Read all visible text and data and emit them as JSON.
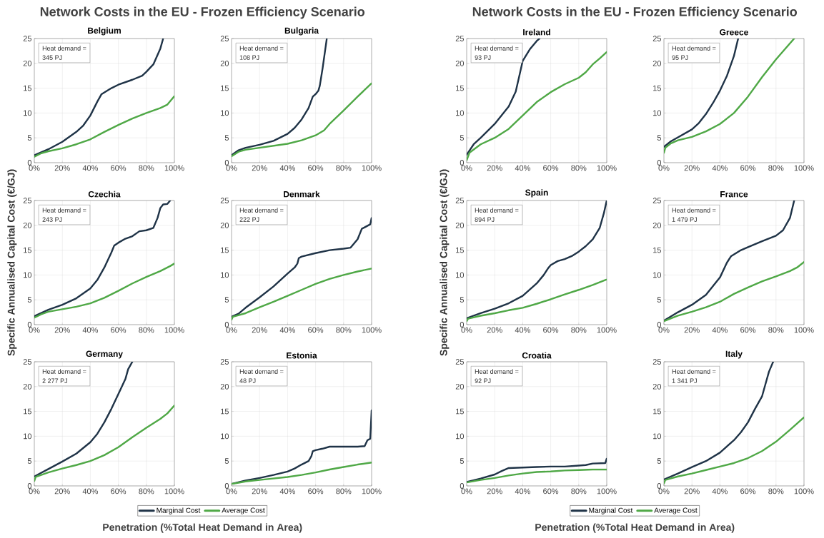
{
  "chart_data": [
    {
      "type": "line",
      "title": "Belgium",
      "xlim": [
        0,
        100
      ],
      "xticks": [
        {
          "value": 0,
          "label": "0%"
        },
        {
          "value": 20,
          "label": "20%"
        },
        {
          "value": 40,
          "label": "40%"
        },
        {
          "value": 60,
          "label": "60%"
        },
        {
          "value": 80,
          "label": "80%"
        },
        {
          "value": 100,
          "label": "100%"
        }
      ],
      "ylim": [
        0,
        25
      ],
      "yticks": [
        0,
        5,
        10,
        15,
        20,
        25
      ],
      "grid": true,
      "annotations": [
        "Network Costs in the EU - Frozen Efficiency Scenario",
        "Heat demand =",
        "345 PJ"
      ],
      "series": [
        {
          "color": "#1f3347",
          "x": [
            0,
            10,
            20,
            30,
            35,
            40,
            45,
            48,
            55,
            60,
            70,
            77,
            80,
            85,
            90,
            92
          ],
          "values": [
            1.5,
            2.7,
            4.2,
            6.2,
            7.5,
            9.5,
            12.3,
            13.8,
            15,
            15.7,
            16.7,
            17.5,
            18.3,
            19.8,
            23,
            25
          ]
        },
        {
          "color": "#4fa846",
          "x": [
            0,
            5,
            10,
            20,
            30,
            40,
            50,
            60,
            70,
            80,
            90,
            95,
            100
          ],
          "values": [
            1.2,
            1.9,
            2.3,
            2.9,
            3.7,
            4.7,
            6.2,
            7.6,
            8.9,
            10,
            11,
            11.7,
            13.4
          ]
        }
      ]
    },
    {
      "type": "line",
      "title": "Bulgaria",
      "xlim": [
        0,
        100
      ],
      "xticks": [
        {
          "value": 0,
          "label": "0%"
        },
        {
          "value": 20,
          "label": "20%"
        },
        {
          "value": 40,
          "label": "40%"
        },
        {
          "value": 60,
          "label": "60%"
        },
        {
          "value": 80,
          "label": "80%"
        },
        {
          "value": 100,
          "label": "100%"
        }
      ],
      "ylim": [
        0,
        25
      ],
      "yticks": [
        0,
        5,
        10,
        15,
        20,
        25
      ],
      "grid": true,
      "annotations": [
        "Heat demand =",
        "108 PJ"
      ],
      "series": [
        {
          "color": "#1f3347",
          "x": [
            0,
            5,
            10,
            20,
            30,
            40,
            45,
            50,
            55,
            58,
            60,
            62,
            63,
            65,
            67,
            68
          ],
          "values": [
            1.5,
            2.5,
            3,
            3.6,
            4.4,
            5.8,
            7,
            8.7,
            11,
            13.3,
            13.8,
            14.5,
            15.5,
            19,
            23,
            25
          ]
        },
        {
          "color": "#4fa846",
          "x": [
            0,
            5,
            10,
            20,
            30,
            40,
            50,
            60,
            66,
            70,
            80,
            90,
            100
          ],
          "values": [
            1.3,
            2.2,
            2.6,
            3,
            3.4,
            3.8,
            4.5,
            5.5,
            6.5,
            7.8,
            10.5,
            13.3,
            16
          ]
        }
      ]
    },
    {
      "type": "line",
      "title": "Czechia",
      "ylabel": "Specific Annualised Capital Cost (€/GJ)",
      "xlim": [
        0,
        100
      ],
      "xticks": [
        {
          "value": 0,
          "label": "0%"
        },
        {
          "value": 20,
          "label": "20%"
        },
        {
          "value": 40,
          "label": "40%"
        },
        {
          "value": 60,
          "label": "60%"
        },
        {
          "value": 80,
          "label": "80%"
        },
        {
          "value": 100,
          "label": "100%"
        }
      ],
      "ylim": [
        0,
        25
      ],
      "yticks": [
        0,
        5,
        10,
        15,
        20,
        25
      ],
      "grid": true,
      "annotations": [
        "Heat demand =",
        "243 PJ"
      ],
      "series": [
        {
          "color": "#1f3347",
          "x": [
            0,
            10,
            20,
            30,
            40,
            45,
            50,
            55,
            57,
            60,
            65,
            70,
            75,
            80,
            85,
            88,
            90,
            92,
            95,
            97
          ],
          "values": [
            1.7,
            3,
            4,
            5.3,
            7.3,
            9,
            11.5,
            14.5,
            15.9,
            16.5,
            17.3,
            17.8,
            18.8,
            19,
            19.5,
            21.5,
            23.5,
            24.2,
            24.3,
            25
          ]
        },
        {
          "color": "#4fa846",
          "x": [
            0,
            5,
            10,
            20,
            30,
            40,
            50,
            60,
            70,
            80,
            90,
            97,
            100
          ],
          "values": [
            1.4,
            2.1,
            2.6,
            3.1,
            3.6,
            4.3,
            5.4,
            6.8,
            8.3,
            9.6,
            10.8,
            11.8,
            12.3
          ]
        }
      ]
    },
    {
      "type": "line",
      "title": "Denmark",
      "xlim": [
        0,
        100
      ],
      "xticks": [
        {
          "value": 0,
          "label": "0%"
        },
        {
          "value": 20,
          "label": "20%"
        },
        {
          "value": 40,
          "label": "40%"
        },
        {
          "value": 60,
          "label": "60%"
        },
        {
          "value": 80,
          "label": "80%"
        },
        {
          "value": 100,
          "label": "100%"
        }
      ],
      "ylim": [
        0,
        25
      ],
      "yticks": [
        0,
        5,
        10,
        15,
        20,
        25
      ],
      "grid": true,
      "annotations": [
        "Heat demand =",
        "222 PJ"
      ],
      "series": [
        {
          "color": "#1f3347",
          "x": [
            0,
            5,
            10,
            20,
            30,
            40,
            45,
            47,
            48,
            50,
            60,
            70,
            80,
            85,
            90,
            93,
            95,
            99,
            100
          ],
          "values": [
            1.6,
            2.2,
            3.4,
            5.5,
            7.7,
            10.3,
            11.5,
            12.3,
            13.4,
            13.7,
            14.4,
            15,
            15.3,
            15.5,
            17.2,
            19.3,
            19.6,
            20.2,
            21.5
          ]
        },
        {
          "color": "#4fa846",
          "x": [
            0,
            1,
            10,
            20,
            30,
            40,
            50,
            60,
            70,
            80,
            90,
            100
          ],
          "values": [
            1,
            1.6,
            2.3,
            3.5,
            4.6,
            5.8,
            7,
            8.2,
            9.2,
            10,
            10.7,
            11.3
          ]
        }
      ]
    },
    {
      "type": "line",
      "title": "Germany",
      "xlabel": "Penetration (%Total Heat Demand in Area)",
      "legend": "bottom",
      "xlim": [
        0,
        100
      ],
      "xticks": [
        {
          "value": 0,
          "label": "0%"
        },
        {
          "value": 20,
          "label": "20%"
        },
        {
          "value": 40,
          "label": "40%"
        },
        {
          "value": 60,
          "label": "60%"
        },
        {
          "value": 80,
          "label": "80%"
        },
        {
          "value": 100,
          "label": "100%"
        }
      ],
      "ylim": [
        0,
        25
      ],
      "yticks": [
        0,
        5,
        10,
        15,
        20,
        25
      ],
      "grid": true,
      "annotations": [
        "Heat demand =",
        "2 277 PJ"
      ],
      "series": [
        {
          "name": "Marginal Cost",
          "color": "#1f3347",
          "x": [
            0,
            10,
            20,
            30,
            40,
            45,
            50,
            55,
            60,
            65,
            67,
            70
          ],
          "values": [
            1.9,
            3.4,
            4.9,
            6.5,
            8.8,
            10.5,
            12.8,
            15.5,
            18.5,
            21.5,
            23.5,
            25
          ]
        },
        {
          "name": "Average Cost",
          "color": "#4fa846",
          "x": [
            0,
            1,
            10,
            20,
            30,
            40,
            50,
            60,
            70,
            80,
            90,
            95,
            100
          ],
          "values": [
            1,
            1.8,
            2.7,
            3.5,
            4.2,
            5,
            6.2,
            7.8,
            9.8,
            11.7,
            13.5,
            14.6,
            16.2
          ]
        }
      ]
    },
    {
      "type": "line",
      "title": "Estonia",
      "xlim": [
        0,
        100
      ],
      "xticks": [
        {
          "value": 0,
          "label": "0%"
        },
        {
          "value": 20,
          "label": "20%"
        },
        {
          "value": 40,
          "label": "40%"
        },
        {
          "value": 60,
          "label": "60%"
        },
        {
          "value": 80,
          "label": "80%"
        },
        {
          "value": 100,
          "label": "100%"
        }
      ],
      "ylim": [
        0,
        25
      ],
      "yticks": [
        0,
        5,
        10,
        15,
        20,
        25
      ],
      "grid": true,
      "annotations": [
        "Heat demand =",
        "48 PJ"
      ],
      "series": [
        {
          "color": "#1f3347",
          "x": [
            0,
            10,
            20,
            30,
            40,
            45,
            50,
            55,
            57,
            58,
            60,
            65,
            70,
            80,
            90,
            95,
            97,
            99,
            100
          ],
          "values": [
            0.4,
            1.1,
            1.6,
            2.2,
            2.9,
            3.5,
            4.3,
            5,
            6,
            7,
            7.2,
            7.5,
            7.9,
            7.9,
            7.9,
            8,
            9.2,
            9.5,
            15.2
          ]
        },
        {
          "color": "#4fa846",
          "x": [
            0,
            10,
            20,
            30,
            40,
            50,
            60,
            70,
            80,
            90,
            100
          ],
          "values": [
            0.4,
            0.9,
            1.2,
            1.5,
            1.8,
            2.2,
            2.7,
            3.3,
            3.8,
            4.3,
            4.7
          ]
        }
      ]
    },
    {
      "type": "line",
      "title": "Ireland",
      "xlim": [
        0,
        100
      ],
      "xticks": [
        {
          "value": 0,
          "label": "0%"
        },
        {
          "value": 20,
          "label": "20%"
        },
        {
          "value": 40,
          "label": "40%"
        },
        {
          "value": 60,
          "label": "60%"
        },
        {
          "value": 80,
          "label": "80%"
        },
        {
          "value": 100,
          "label": "100%"
        }
      ],
      "ylim": [
        0,
        25
      ],
      "yticks": [
        0,
        5,
        10,
        15,
        20,
        25
      ],
      "grid": true,
      "annotations": [
        "Network Costs in the EU - Frozen Efficiency Scenario",
        "Heat demand =",
        "93 PJ"
      ],
      "series": [
        {
          "color": "#1f3347",
          "x": [
            0,
            5,
            10,
            20,
            30,
            35,
            38,
            40,
            45,
            50,
            52
          ],
          "values": [
            1.6,
            3.7,
            5,
            7.8,
            11.3,
            14.3,
            18,
            20.5,
            22.8,
            24.5,
            25
          ]
        },
        {
          "color": "#4fa846",
          "x": [
            0,
            2,
            10,
            20,
            30,
            40,
            50,
            60,
            70,
            80,
            85,
            90,
            95,
            100
          ],
          "values": [
            0.5,
            2,
            3.7,
            5,
            6.8,
            9.5,
            12.2,
            14.2,
            15.8,
            17.1,
            18.2,
            19.8,
            21,
            22.3
          ]
        }
      ]
    },
    {
      "type": "line",
      "title": "Greece",
      "xlim": [
        0,
        100
      ],
      "xticks": [
        {
          "value": 0,
          "label": "0%"
        },
        {
          "value": 20,
          "label": "20%"
        },
        {
          "value": 40,
          "label": "40%"
        },
        {
          "value": 60,
          "label": "60%"
        },
        {
          "value": 80,
          "label": "80%"
        },
        {
          "value": 100,
          "label": "100%"
        }
      ],
      "ylim": [
        0,
        25
      ],
      "yticks": [
        0,
        5,
        10,
        15,
        20,
        25
      ],
      "grid": true,
      "annotations": [
        "Heat demand =",
        "95 PJ"
      ],
      "series": [
        {
          "color": "#1f3347",
          "x": [
            0,
            5,
            10,
            20,
            25,
            30,
            35,
            40,
            45,
            50,
            53
          ],
          "values": [
            3.2,
            4.3,
            5.1,
            6.7,
            8,
            9.8,
            12,
            14.5,
            17.5,
            21.5,
            25
          ]
        },
        {
          "color": "#4fa846",
          "x": [
            0,
            1,
            5,
            10,
            20,
            30,
            40,
            50,
            60,
            70,
            80,
            93
          ],
          "values": [
            2,
            3,
            3.9,
            4.5,
            5.2,
            6.3,
            7.8,
            10,
            13.3,
            17.2,
            20.8,
            25
          ]
        }
      ]
    },
    {
      "type": "line",
      "title": "Spain",
      "ylabel": "Specific Annualised Capital Cost (€/GJ)",
      "xlim": [
        0,
        100
      ],
      "xticks": [
        {
          "value": 0,
          "label": "0%"
        },
        {
          "value": 20,
          "label": "20%"
        },
        {
          "value": 40,
          "label": "40%"
        },
        {
          "value": 60,
          "label": "60%"
        },
        {
          "value": 80,
          "label": "80%"
        },
        {
          "value": 100,
          "label": "100%"
        }
      ],
      "ylim": [
        0,
        25
      ],
      "yticks": [
        0,
        5,
        10,
        15,
        20,
        25
      ],
      "grid": true,
      "annotations": [
        "Heat demand =",
        "894 PJ"
      ],
      "series": [
        {
          "color": "#1f3347",
          "x": [
            0,
            10,
            20,
            30,
            40,
            50,
            55,
            58,
            60,
            65,
            70,
            75,
            80,
            85,
            90,
            95,
            98,
            100
          ],
          "values": [
            1.3,
            2.3,
            3.2,
            4.3,
            5.8,
            8.3,
            10,
            11.3,
            12,
            12.8,
            13.2,
            13.8,
            14.7,
            15.8,
            17.2,
            19.5,
            22.5,
            25
          ]
        },
        {
          "color": "#4fa846",
          "x": [
            0,
            1,
            10,
            20,
            30,
            40,
            50,
            60,
            70,
            80,
            90,
            100
          ],
          "values": [
            0.7,
            1.2,
            1.8,
            2.3,
            2.9,
            3.4,
            4.2,
            5.1,
            6.1,
            7,
            8,
            9.1
          ]
        }
      ]
    },
    {
      "type": "line",
      "title": "France",
      "xlim": [
        0,
        100
      ],
      "xticks": [
        {
          "value": 0,
          "label": "0%"
        },
        {
          "value": 20,
          "label": "20%"
        },
        {
          "value": 40,
          "label": "40%"
        },
        {
          "value": 60,
          "label": "60%"
        },
        {
          "value": 80,
          "label": "80%"
        },
        {
          "value": 100,
          "label": "100%"
        }
      ],
      "ylim": [
        0,
        25
      ],
      "yticks": [
        0,
        5,
        10,
        15,
        20,
        25
      ],
      "grid": true,
      "annotations": [
        "Heat demand =",
        "1 479 PJ"
      ],
      "series": [
        {
          "color": "#1f3347",
          "x": [
            0,
            10,
            20,
            30,
            40,
            45,
            48,
            55,
            60,
            70,
            80,
            85,
            90,
            93
          ],
          "values": [
            0.8,
            2.5,
            4,
            6,
            9.5,
            12.5,
            13.8,
            15,
            15.6,
            16.8,
            17.9,
            19,
            21.5,
            25
          ]
        },
        {
          "color": "#4fa846",
          "x": [
            0,
            10,
            20,
            30,
            40,
            50,
            60,
            70,
            80,
            90,
            95,
            100
          ],
          "values": [
            0.7,
            1.8,
            2.6,
            3.5,
            4.6,
            6.2,
            7.5,
            8.7,
            9.7,
            10.8,
            11.5,
            12.6
          ]
        }
      ]
    },
    {
      "type": "line",
      "title": "Croatia",
      "xlabel": "Penetration (%Total Heat Demand in Area)",
      "legend": "bottom",
      "xlim": [
        0,
        100
      ],
      "xticks": [
        {
          "value": 0,
          "label": "0%"
        },
        {
          "value": 20,
          "label": "20%"
        },
        {
          "value": 40,
          "label": "40%"
        },
        {
          "value": 60,
          "label": "60%"
        },
        {
          "value": 80,
          "label": "80%"
        },
        {
          "value": 100,
          "label": "100%"
        }
      ],
      "ylim": [
        0,
        25
      ],
      "yticks": [
        0,
        5,
        10,
        15,
        20,
        25
      ],
      "grid": true,
      "annotations": [
        "Heat demand =",
        "92 PJ"
      ],
      "series": [
        {
          "name": "Marginal Cost",
          "color": "#1f3347",
          "x": [
            0,
            10,
            20,
            25,
            30,
            40,
            50,
            60,
            70,
            80,
            85,
            90,
            99,
            100
          ],
          "values": [
            0.8,
            1.5,
            2.3,
            3,
            3.6,
            3.7,
            3.8,
            3.9,
            3.9,
            4.1,
            4.2,
            4.5,
            4.6,
            5.5
          ]
        },
        {
          "name": "Average Cost",
          "color": "#4fa846",
          "x": [
            0,
            10,
            20,
            30,
            40,
            50,
            60,
            70,
            80,
            90,
            100
          ],
          "values": [
            0.7,
            1.2,
            1.6,
            2.1,
            2.5,
            2.8,
            2.9,
            3.1,
            3.2,
            3.3,
            3.3
          ]
        }
      ]
    },
    {
      "type": "line",
      "title": "Italy",
      "xlim": [
        0,
        100
      ],
      "xticks": [
        {
          "value": 0,
          "label": "0%"
        },
        {
          "value": 20,
          "label": "20%"
        },
        {
          "value": 40,
          "label": "40%"
        },
        {
          "value": 60,
          "label": "60%"
        },
        {
          "value": 80,
          "label": "80%"
        },
        {
          "value": 100,
          "label": "100%"
        }
      ],
      "ylim": [
        0,
        25
      ],
      "yticks": [
        0,
        5,
        10,
        15,
        20,
        25
      ],
      "grid": true,
      "annotations": [
        "Heat demand =",
        "1 341 PJ"
      ],
      "series": [
        {
          "color": "#1f3347",
          "x": [
            0,
            10,
            20,
            30,
            40,
            50,
            55,
            60,
            65,
            70,
            72,
            75,
            78
          ],
          "values": [
            1.3,
            2.5,
            3.8,
            5,
            6.7,
            9.2,
            10.8,
            12.8,
            15.5,
            18,
            20,
            23,
            25
          ]
        },
        {
          "color": "#4fa846",
          "x": [
            0,
            1,
            10,
            20,
            30,
            40,
            50,
            60,
            70,
            80,
            90,
            100
          ],
          "values": [
            0.5,
            1.2,
            1.9,
            2.5,
            3.2,
            3.9,
            4.6,
            5.6,
            7,
            8.9,
            11.3,
            13.8
          ]
        }
      ]
    }
  ]
}
